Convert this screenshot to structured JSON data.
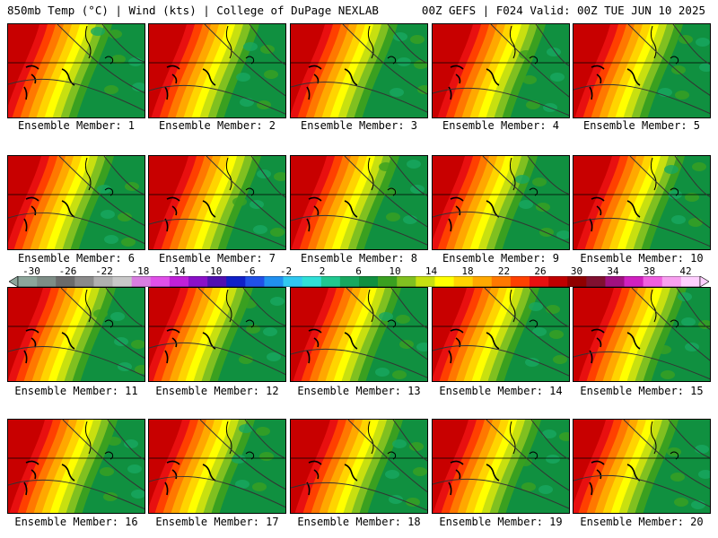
{
  "header": {
    "left": "850mb Temp (°C) | Wind (kts) | College of DuPage NEXLAB",
    "right": "00Z GEFS | F024 Valid: 00Z TUE JUN 10 2025"
  },
  "panel_label_prefix": "Ensemble Member: ",
  "members": [
    "1",
    "2",
    "3",
    "4",
    "5",
    "6",
    "7",
    "8",
    "9",
    "10",
    "11",
    "12",
    "13",
    "14",
    "15",
    "16",
    "17",
    "18",
    "19",
    "20"
  ],
  "colorbar": {
    "labels": [
      "-30",
      "-26",
      "-22",
      "-18",
      "-14",
      "-10",
      "-6",
      "-2",
      "2",
      "6",
      "10",
      "14",
      "18",
      "22",
      "26",
      "30",
      "34",
      "38",
      "42"
    ],
    "colors": [
      "#8ca59a",
      "#7d8d86",
      "#6b6b6b",
      "#8a8a8a",
      "#b0b0b0",
      "#c8c8c8",
      "#d87ee0",
      "#e050e8",
      "#c020d8",
      "#8a10c8",
      "#5010b0",
      "#1020c8",
      "#2050e8",
      "#2090f0",
      "#30c8f0",
      "#30e0d8",
      "#20c890",
      "#18a860",
      "#109040",
      "#3aa020",
      "#80c020",
      "#c8e010",
      "#ffff00",
      "#ffd400",
      "#ffa800",
      "#ff7800",
      "#ff4000",
      "#e81010",
      "#c00000",
      "#900000",
      "#801030",
      "#a01080",
      "#d020c0",
      "#f060e0",
      "#f8a0f0",
      "#ffd0ff"
    ]
  }
}
